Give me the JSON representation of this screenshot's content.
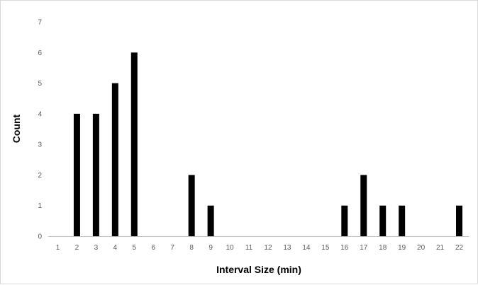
{
  "chart_data": {
    "type": "bar",
    "title": "",
    "xlabel": "Interval Size (min)",
    "ylabel": "Count",
    "categories": [
      "1",
      "2",
      "3",
      "4",
      "5",
      "6",
      "7",
      "8",
      "9",
      "10",
      "11",
      "12",
      "13",
      "14",
      "15",
      "16",
      "17",
      "18",
      "19",
      "20",
      "21",
      "22"
    ],
    "values": [
      0,
      4,
      4,
      5,
      6,
      0,
      0,
      2,
      1,
      0,
      0,
      0,
      0,
      0,
      0,
      1,
      2,
      1,
      1,
      0,
      0,
      1
    ],
    "ylim": [
      0,
      7
    ],
    "yticks": [
      "0",
      "1",
      "2",
      "3",
      "4",
      "5",
      "6",
      "7"
    ],
    "grid": false,
    "legend": "none",
    "bar_color": "#000000",
    "axis_color": "#bfbfbf"
  }
}
